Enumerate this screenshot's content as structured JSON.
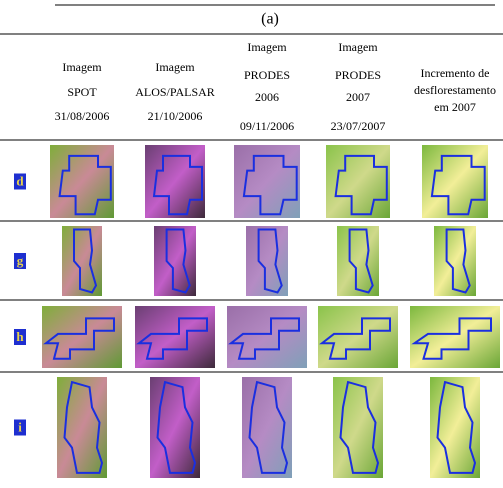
{
  "figure": {
    "label": "(a)",
    "columns": [
      [
        "Imagem",
        "SPOT",
        "31/08/2006"
      ],
      [
        "Imagem",
        "ALOS/PALSAR",
        "21/10/2006"
      ],
      [
        "Imagem",
        "PRODES",
        "2006",
        "09/11/2006"
      ],
      [
        "Imagem",
        "PRODES",
        "2007",
        "23/07/2007"
      ],
      [
        "Incremento de",
        "desflorestamento",
        "em 2007"
      ]
    ],
    "rows": [
      "d",
      "g",
      "h",
      "i"
    ]
  }
}
